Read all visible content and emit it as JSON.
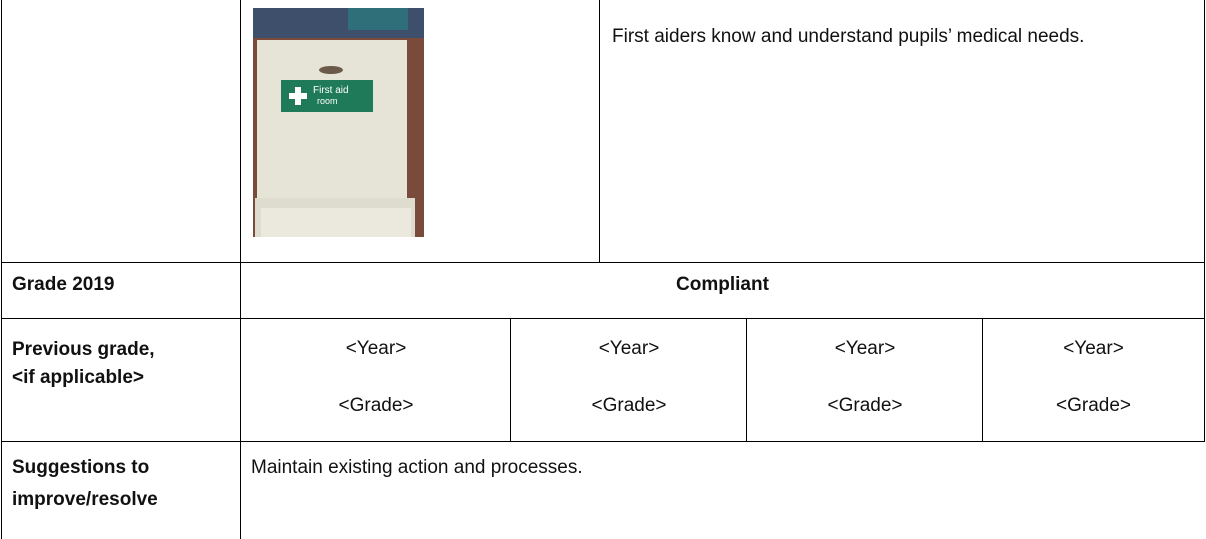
{
  "table": {
    "rows": [
      {
        "photo": {
          "sign_text": [
            "First aid",
            "room"
          ]
        },
        "text": "First aiders know and understand pupils’ medical needs."
      },
      {
        "label": "Grade 2019",
        "value": "Compliant"
      },
      {
        "label": [
          "Previous grade,",
          "<if applicable>"
        ],
        "cells": [
          [
            "<Year>",
            "<Grade>"
          ],
          [
            "<Year>",
            "<Grade>"
          ],
          [
            "<Year>",
            "<Grade>"
          ],
          [
            "<Year>",
            "<Grade>"
          ]
        ]
      },
      {
        "label": [
          "Suggestions to",
          "improve/resolve"
        ],
        "value": "Maintain existing action and processes."
      }
    ]
  }
}
